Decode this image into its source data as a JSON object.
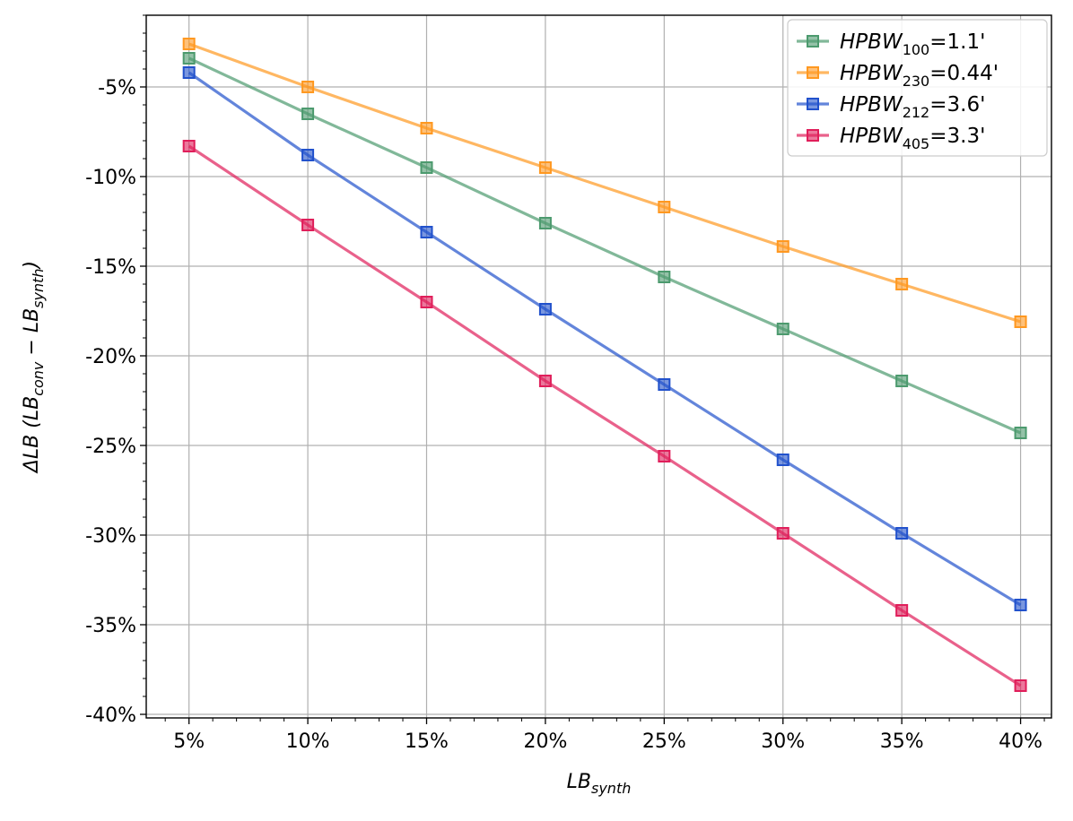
{
  "chart_data": {
    "type": "line",
    "x": [
      "5%",
      "10%",
      "15%",
      "20%",
      "25%",
      "30%",
      "35%",
      "40%"
    ],
    "x_values": [
      5,
      10,
      15,
      20,
      25,
      30,
      35,
      40
    ],
    "xlim": [
      3.2,
      41.3
    ],
    "ylim": [
      -40.2,
      -1.0
    ],
    "y_ticks": [
      -5,
      -10,
      -15,
      -20,
      -25,
      -30,
      -35,
      -40
    ],
    "y_tick_labels": [
      "-5%",
      "-10%",
      "-15%",
      "-20%",
      "-25%",
      "-30%",
      "-35%",
      "-40%"
    ],
    "xlabel": {
      "base": "LB",
      "sub": "synth"
    },
    "ylabel": {
      "prefix": "ΔLB (",
      "a": "LB",
      "a_sub": "conv",
      "minus": " − ",
      "b": "LB",
      "b_sub": "synth",
      "suffix": ")"
    },
    "grid": true,
    "legend_position": "top-right",
    "series": [
      {
        "name_base": "HPBW",
        "name_sub": "100",
        "name_rest": "=1.1'",
        "color": "#4c9a6e",
        "values": [
          -3.4,
          -6.5,
          -9.5,
          -12.6,
          -15.6,
          -18.5,
          -21.4,
          -24.3
        ]
      },
      {
        "name_base": "HPBW",
        "name_sub": "230",
        "name_rest": "=0.44'",
        "color": "#ff9820",
        "values": [
          -2.6,
          -5.0,
          -7.3,
          -9.5,
          -11.7,
          -13.9,
          -16.0,
          -18.1
        ]
      },
      {
        "name_base": "HPBW",
        "name_sub": "212",
        "name_rest": "=3.6'",
        "color": "#2151cc",
        "values": [
          -4.2,
          -8.8,
          -13.1,
          -17.4,
          -21.6,
          -25.8,
          -29.9,
          -33.9
        ]
      },
      {
        "name_base": "HPBW",
        "name_sub": "405",
        "name_rest": "=3.3'",
        "color": "#e01e5a",
        "values": [
          -8.3,
          -12.7,
          -17.0,
          -21.4,
          -25.6,
          -29.9,
          -34.2,
          -38.4
        ]
      }
    ]
  }
}
